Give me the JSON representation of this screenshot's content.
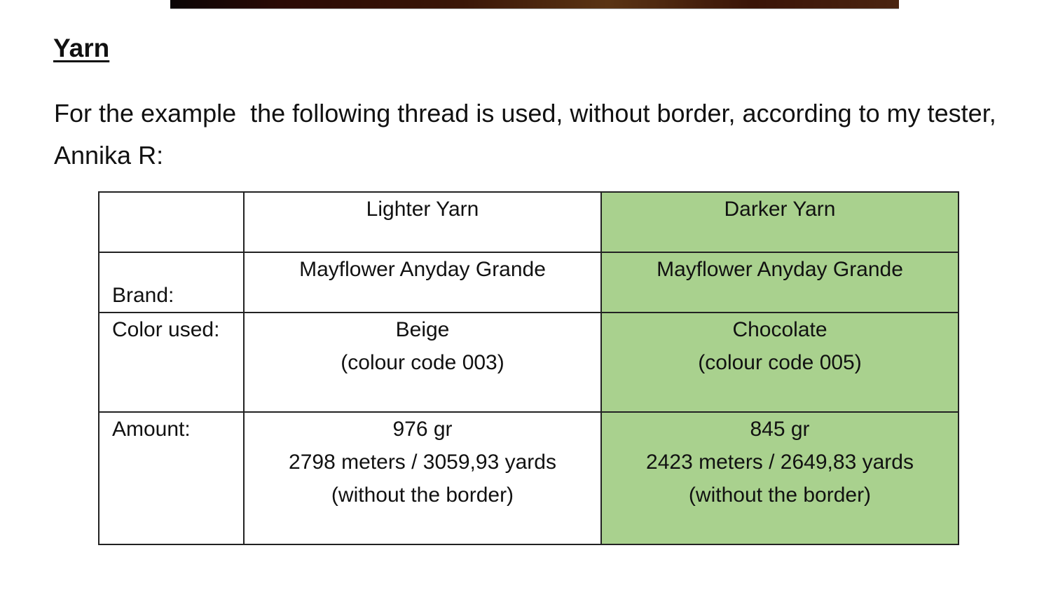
{
  "heading": "Yarn",
  "paragraph": "For the example  the following thread is used, without border, according to my tester, Annika R:",
  "table": {
    "headers": [
      "",
      "Lighter Yarn",
      "Darker Yarn"
    ],
    "rows": [
      {
        "label": "Brand:",
        "lighter": [
          "Mayflower Anyday Grande"
        ],
        "darker": [
          "Mayflower Anyday Grande"
        ]
      },
      {
        "label": "Color used:",
        "lighter": [
          "Beige",
          "(colour code 003)"
        ],
        "darker": [
          "Chocolate",
          "(colour code 005)"
        ]
      },
      {
        "label": "Amount:",
        "lighter": [
          "976 gr",
          "2798 meters / 3059,93 yards",
          "(without the border)"
        ],
        "darker": [
          "845 gr",
          "2423 meters / 2649,83 yards",
          "(without the border)"
        ]
      }
    ]
  },
  "colors": {
    "darker_column_fill": "#a9d18e"
  }
}
